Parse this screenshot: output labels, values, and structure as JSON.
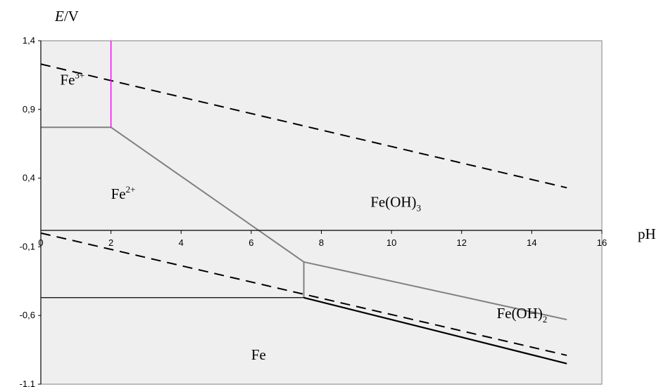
{
  "chart_data": {
    "type": "line",
    "xlabel": "pH",
    "ylabel_var": "E",
    "ylabel_unit": "/V",
    "xlim": [
      0,
      16
    ],
    "ylim": [
      -1.1,
      1.4
    ],
    "x_ticks": [
      "0",
      "2",
      "4",
      "6",
      "8",
      "10",
      "12",
      "14",
      "16"
    ],
    "y_ticks": [
      "-1,1",
      "-0,6",
      "-0,1",
      "0,4",
      "0,9",
      "1,4"
    ],
    "colors": {
      "plot_bg": "#efefef",
      "boundary": "#808080",
      "dashed": "#000000",
      "fe_boundary": "#000000",
      "fe3_boundary": "#ff00ff"
    },
    "series": [
      {
        "kind": "water-upper-dashed",
        "x": [
          0,
          15
        ],
        "y": [
          1.23,
          0.33
        ]
      },
      {
        "kind": "water-lower-dashed",
        "x": [
          0,
          15
        ],
        "y": [
          0.0,
          -0.89
        ]
      },
      {
        "kind": "fe3-fe2",
        "x": [
          0,
          2
        ],
        "y": [
          0.77,
          0.77
        ]
      },
      {
        "kind": "fe3-vertical",
        "x": [
          2,
          2
        ],
        "y": [
          0.77,
          1.4
        ]
      },
      {
        "kind": "fe2-feoh3",
        "x": [
          2,
          7.5
        ],
        "y": [
          0.77,
          -0.21
        ]
      },
      {
        "kind": "feoh3-feoh2",
        "x": [
          7.5,
          15
        ],
        "y": [
          -0.21,
          -0.63
        ]
      },
      {
        "kind": "fe2-feoh2-vertical",
        "x": [
          7.5,
          7.5
        ],
        "y": [
          -0.21,
          -0.47
        ]
      },
      {
        "kind": "fe2-fe",
        "x": [
          0,
          7.5
        ],
        "y": [
          -0.47,
          -0.47
        ]
      },
      {
        "kind": "feoh2-fe",
        "x": [
          7.5,
          15
        ],
        "y": [
          -0.47,
          -0.95
        ]
      }
    ],
    "regions": [
      {
        "base": "Fe",
        "sup": "3+",
        "sub": "",
        "x": 0.55,
        "y": 1.08
      },
      {
        "base": "Fe",
        "sup": "2+",
        "sub": "",
        "x": 2.0,
        "y": 0.25
      },
      {
        "base": "Fe(OH)",
        "sup": "",
        "sub": "3",
        "x": 9.4,
        "y": 0.19
      },
      {
        "base": "Fe(OH)",
        "sup": "",
        "sub": "2",
        "x": 13.0,
        "y": -0.62
      },
      {
        "base": "Fe",
        "sup": "",
        "sub": "",
        "x": 6.0,
        "y": -0.92
      }
    ]
  }
}
